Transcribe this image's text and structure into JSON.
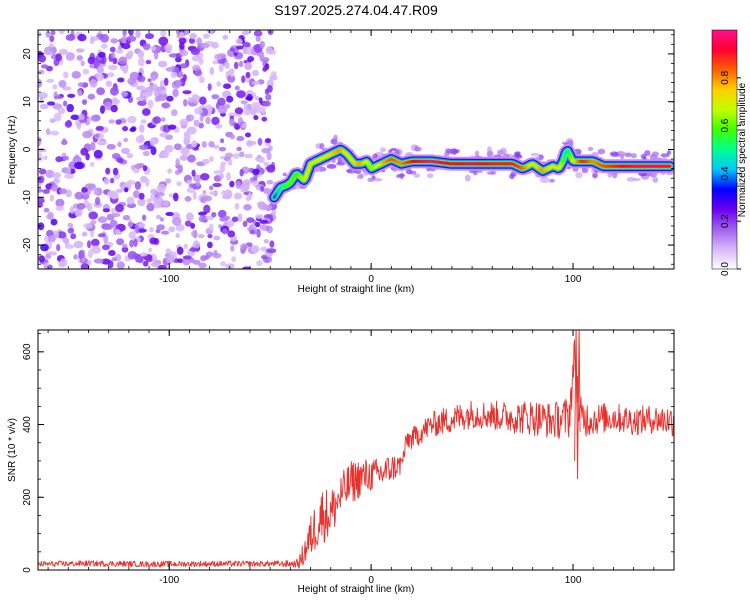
{
  "figure_title": "S197.2025.274.04.47.R09",
  "chart_data": [
    {
      "type": "heatmap",
      "panel": "spectrogram",
      "xlabel": "Height of straight line (km)",
      "ylabel": "Frequency (Hz)",
      "xlim": [
        -165,
        150
      ],
      "ylim": [
        -25,
        25
      ],
      "xticks": [
        -100,
        0,
        100
      ],
      "yticks": [
        -20,
        -10,
        0,
        10,
        20
      ],
      "xtick_labels": [
        "-100",
        "0",
        "100"
      ],
      "ytick_labels": [
        "-20",
        "-10",
        "0",
        "10",
        "20"
      ],
      "noise_region_x": [
        -165,
        -48
      ],
      "ridge": {
        "x": [
          -48,
          -45,
          -42,
          -40,
          -37,
          -33,
          -30,
          -25,
          -20,
          -15,
          -12,
          -8,
          -5,
          -2,
          0,
          5,
          10,
          15,
          20,
          30,
          40,
          50,
          60,
          70,
          75,
          80,
          85,
          90,
          93,
          95,
          97,
          100,
          105,
          110,
          115,
          130,
          148
        ],
        "y": [
          -10,
          -8,
          -7.5,
          -7,
          -5,
          -6.5,
          -3,
          -2,
          -1,
          0,
          -1,
          -3,
          -3,
          -2.5,
          -4,
          -3,
          -2,
          -3,
          -2.5,
          -2.5,
          -3,
          -3,
          -3,
          -3,
          -4,
          -3,
          -4.5,
          -3.5,
          -4,
          -2.5,
          0,
          -2.5,
          -2.5,
          -2.5,
          -3.5,
          -3.5,
          -3.5
        ],
        "amplitude": [
          0.35,
          0.45,
          0.55,
          0.6,
          0.55,
          0.7,
          0.75,
          0.7,
          0.75,
          0.8,
          0.7,
          0.75,
          0.8,
          0.7,
          0.6,
          0.75,
          0.85,
          0.8,
          0.9,
          1.0,
          0.9,
          0.95,
          0.9,
          0.9,
          0.85,
          0.7,
          0.8,
          0.7,
          0.75,
          0.6,
          0.4,
          0.7,
          0.9,
          0.8,
          0.85,
          0.95,
          0.95
        ]
      }
    },
    {
      "type": "line",
      "panel": "snr",
      "xlabel": "Height of straight line (km)",
      "ylabel": "SNR (10 * v/v)",
      "xlim": [
        -165,
        150
      ],
      "ylim": [
        0,
        660
      ],
      "xticks": [
        -100,
        0,
        100
      ],
      "yticks": [
        0,
        200,
        400,
        600
      ],
      "xtick_labels": [
        "-100",
        "0",
        "100"
      ],
      "ytick_labels": [
        "0",
        "200",
        "400",
        "600"
      ],
      "line_color": "#e8302c",
      "series": [
        {
          "name": "SNR",
          "x": [
            -165,
            -140,
            -110,
            -80,
            -50,
            -37,
            -35,
            -30,
            -25,
            -20,
            -15,
            -10,
            -5,
            0,
            5,
            10,
            15,
            18,
            20,
            30,
            40,
            50,
            60,
            70,
            80,
            90,
            98,
            101,
            103,
            110,
            120,
            130,
            140,
            150
          ],
          "y": [
            16,
            18,
            16,
            17,
            17,
            17,
            25,
            90,
            150,
            155,
            205,
            240,
            255,
            260,
            265,
            280,
            290,
            360,
            360,
            400,
            415,
            430,
            425,
            420,
            420,
            410,
            420,
            600,
            420,
            415,
            420,
            410,
            415,
            410
          ],
          "spread": [
            8,
            8,
            8,
            8,
            8,
            10,
            25,
            60,
            80,
            70,
            60,
            60,
            55,
            45,
            45,
            40,
            30,
            30,
            30,
            35,
            40,
            40,
            40,
            45,
            50,
            50,
            60,
            60,
            60,
            45,
            40,
            40,
            40,
            45
          ]
        }
      ]
    }
  ],
  "colorbar": {
    "label": "Normalized spectral amplitude",
    "range": [
      0,
      1
    ],
    "ticks": [
      0.0,
      0.2,
      0.4,
      0.6,
      0.8
    ],
    "tick_labels": [
      "0.0",
      "0.2",
      "0.4",
      "0.6",
      "0.8"
    ],
    "colors": [
      "#ffffff",
      "#d8b8f8",
      "#a060f0",
      "#6a00f0",
      "#0000ff",
      "#00c8ff",
      "#00ff90",
      "#40ff00",
      "#c0ff00",
      "#ffd000",
      "#ff6000",
      "#ff0030",
      "#ff1090"
    ]
  }
}
